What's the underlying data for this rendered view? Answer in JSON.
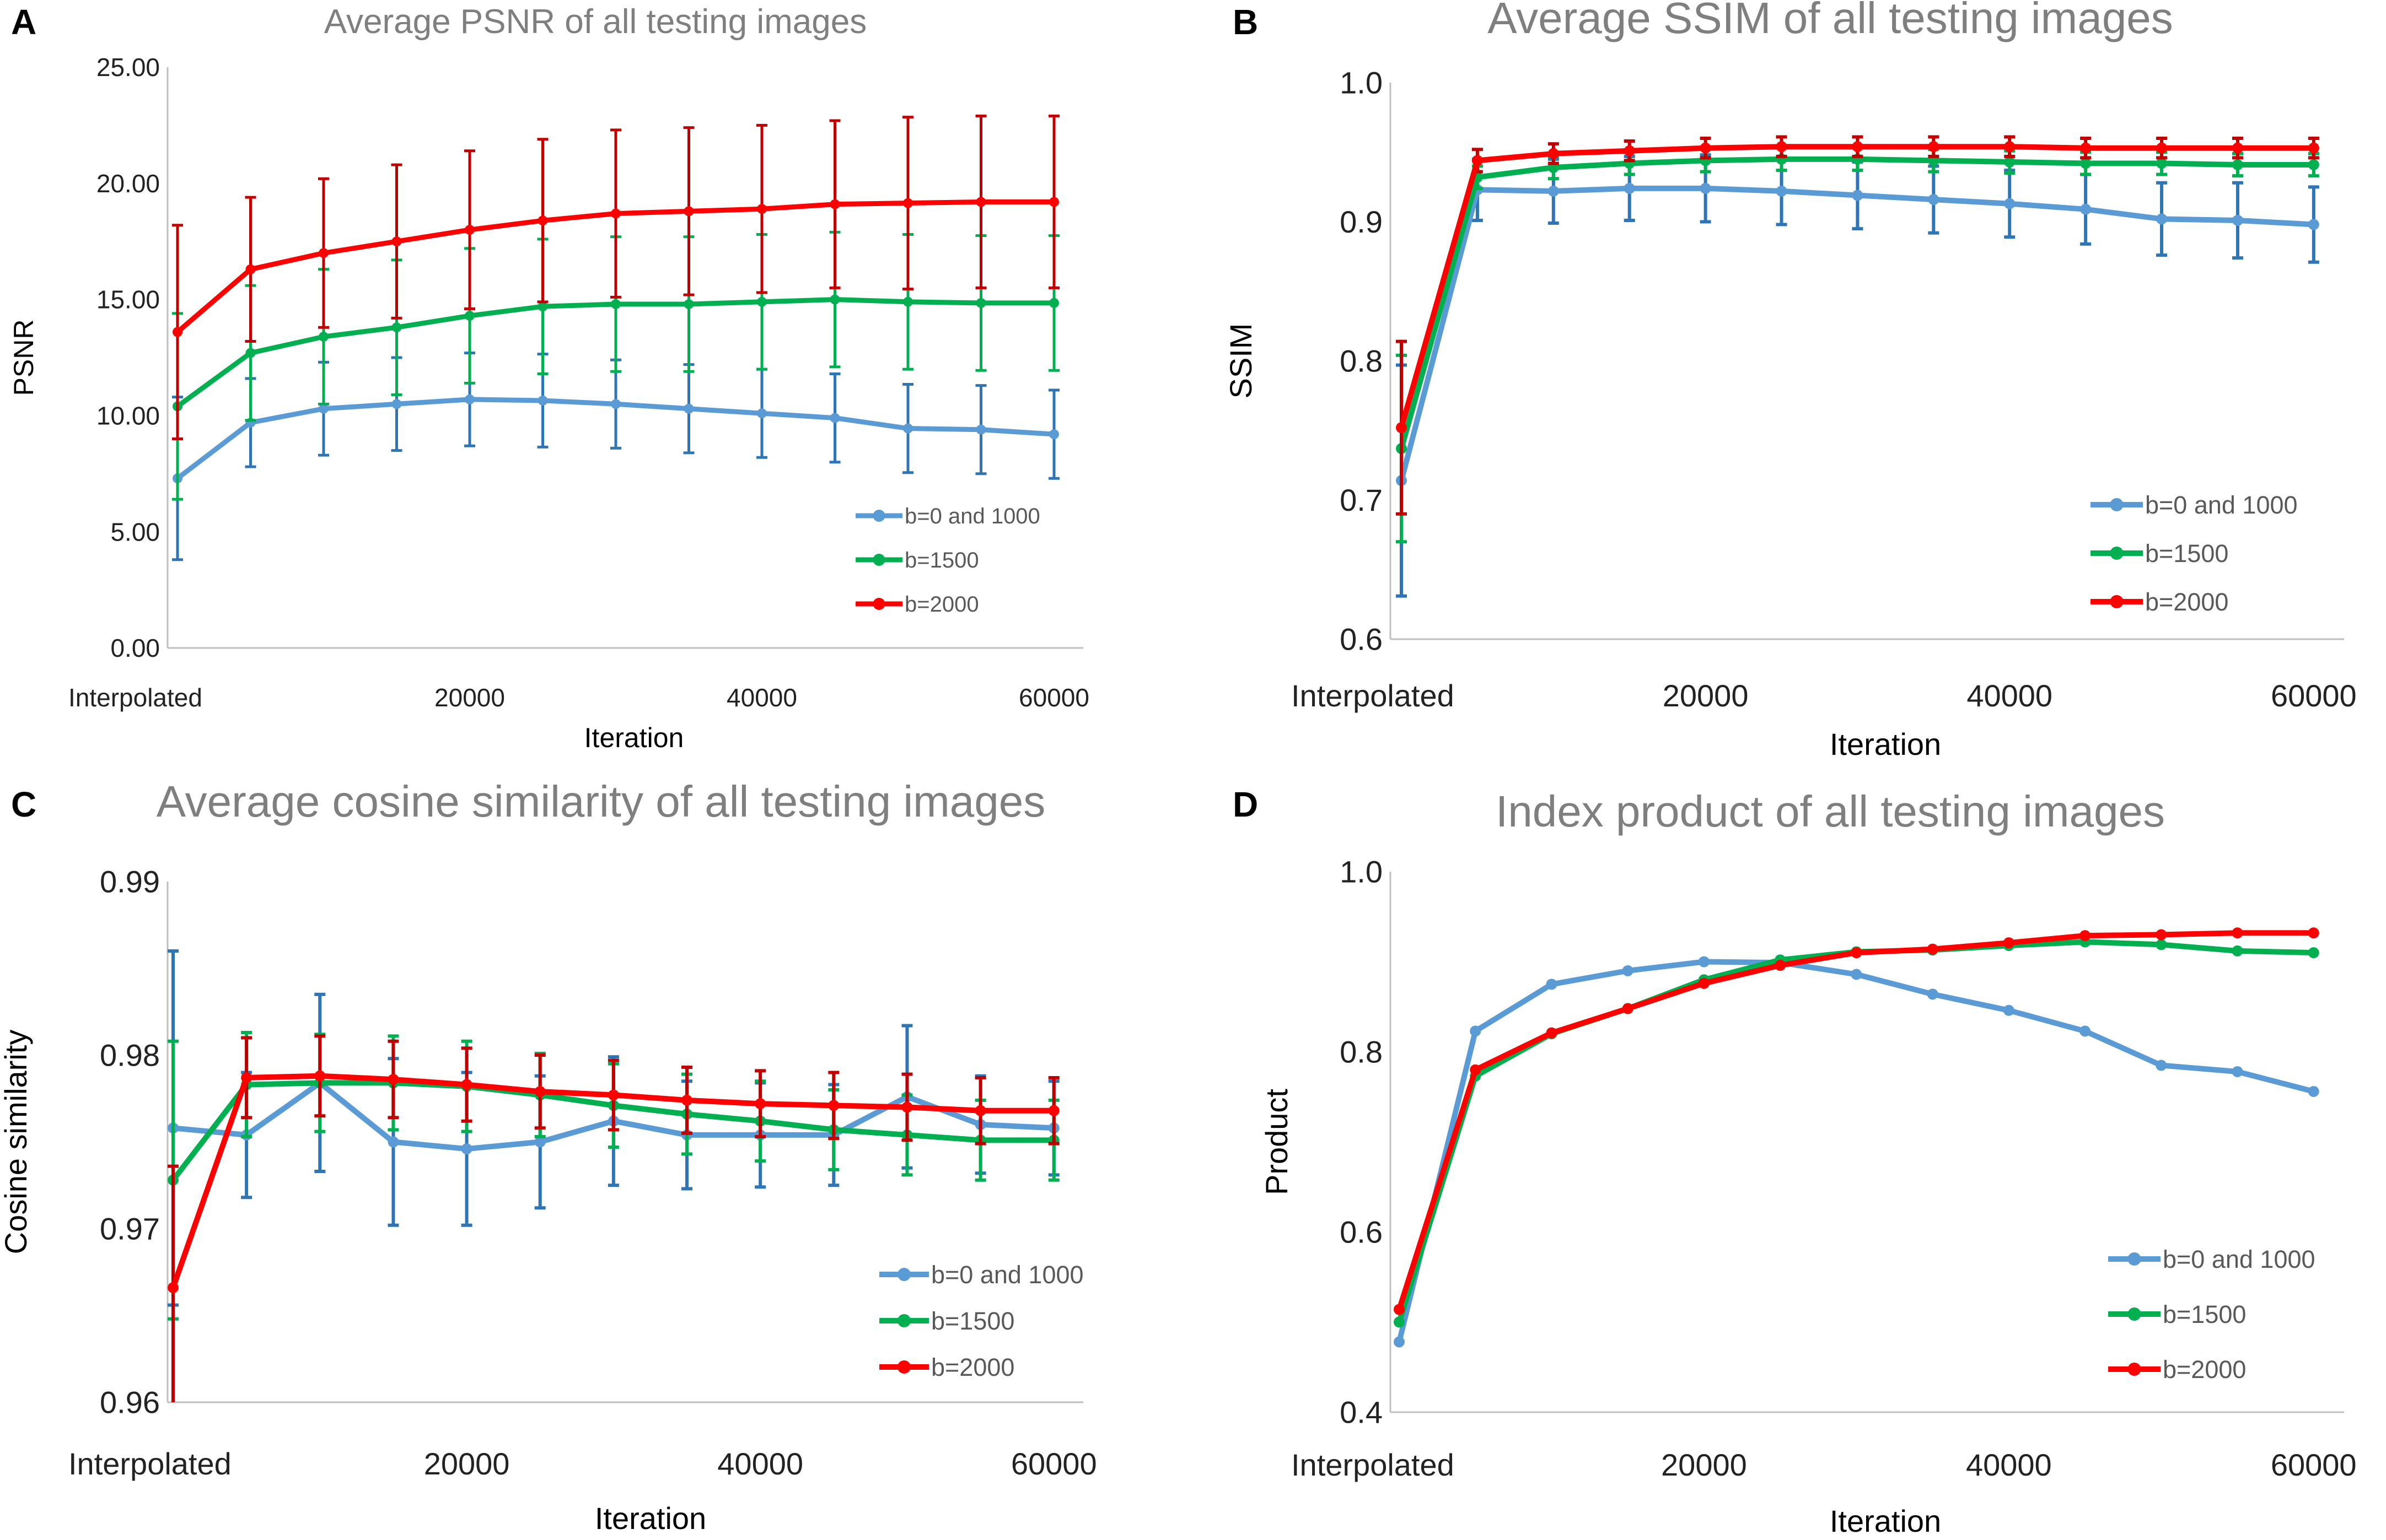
{
  "chart_data": [
    {
      "panel": "A",
      "type": "line",
      "title": "Average PSNR of all testing images",
      "xlabel": "Iteration",
      "ylabel": "PSNR",
      "x": [
        0,
        5000,
        10000,
        15000,
        20000,
        25000,
        30000,
        35000,
        40000,
        45000,
        50000,
        55000,
        60000
      ],
      "xtick_values": [
        0,
        20000,
        40000,
        60000
      ],
      "xtick_labels": [
        "Interpolated",
        "20000",
        "40000",
        "60000"
      ],
      "xlim": [
        0,
        62000
      ],
      "ylim": [
        0,
        25
      ],
      "yticks": [
        0,
        5,
        10,
        15,
        20,
        25
      ],
      "ytick_labels": [
        "0.00",
        "5.00",
        "10.00",
        "15.00",
        "20.00",
        "25.00"
      ],
      "error_bars": true,
      "series": [
        {
          "name": "b=0 and 1000",
          "color": "#5b9bd5",
          "errcolor": "#2e75b6",
          "values": [
            7.3,
            9.7,
            10.3,
            10.5,
            10.7,
            10.65,
            10.5,
            10.3,
            10.1,
            9.9,
            9.45,
            9.4,
            9.2
          ],
          "errors": [
            3.5,
            1.9,
            2.0,
            2.0,
            2.0,
            2.0,
            1.9,
            1.9,
            1.9,
            1.9,
            1.9,
            1.9,
            1.9
          ]
        },
        {
          "name": "b=1500",
          "color": "#00b050",
          "errcolor": "#00b050",
          "values": [
            10.4,
            12.7,
            13.4,
            13.8,
            14.3,
            14.7,
            14.8,
            14.8,
            14.9,
            15.0,
            14.9,
            14.85,
            14.85
          ],
          "errors": [
            4.0,
            2.9,
            2.9,
            2.9,
            2.9,
            2.9,
            2.9,
            2.9,
            2.9,
            2.9,
            2.9,
            2.9,
            2.9
          ]
        },
        {
          "name": "b=2000",
          "color": "#ff0000",
          "errcolor": "#c00000",
          "values": [
            13.6,
            16.3,
            17.0,
            17.5,
            18.0,
            18.4,
            18.7,
            18.8,
            18.9,
            19.1,
            19.15,
            19.2,
            19.2
          ],
          "errors": [
            4.6,
            3.1,
            3.2,
            3.3,
            3.4,
            3.5,
            3.6,
            3.6,
            3.6,
            3.6,
            3.7,
            3.7,
            3.7
          ]
        }
      ],
      "legend_position": "bottom-right"
    },
    {
      "panel": "B",
      "type": "line",
      "title": "Average SSIM of all testing images",
      "xlabel": "Iteration",
      "ylabel": "SSIM",
      "x": [
        0,
        5000,
        10000,
        15000,
        20000,
        25000,
        30000,
        35000,
        40000,
        45000,
        50000,
        55000,
        60000
      ],
      "xtick_values": [
        0,
        20000,
        40000,
        60000
      ],
      "xtick_labels": [
        "Interpolated",
        "20000",
        "40000",
        "60000"
      ],
      "xlim": [
        0,
        62000
      ],
      "ylim": [
        0.6,
        1.0
      ],
      "yticks": [
        0.6,
        0.7,
        0.8,
        0.9,
        1.0
      ],
      "ytick_labels": [
        "0.6",
        "0.7",
        "0.8",
        "0.9",
        "1.0"
      ],
      "error_bars": true,
      "series": [
        {
          "name": "b=0 and 1000",
          "color": "#5b9bd5",
          "errcolor": "#2e75b6",
          "values": [
            0.714,
            0.923,
            0.922,
            0.924,
            0.924,
            0.922,
            0.919,
            0.916,
            0.913,
            0.909,
            0.902,
            0.901,
            0.898
          ],
          "errors": [
            0.083,
            0.022,
            0.023,
            0.023,
            0.024,
            0.024,
            0.024,
            0.024,
            0.024,
            0.025,
            0.026,
            0.027,
            0.027
          ]
        },
        {
          "name": "b=1500",
          "color": "#00b050",
          "errcolor": "#00b050",
          "values": [
            0.737,
            0.932,
            0.939,
            0.942,
            0.944,
            0.945,
            0.945,
            0.944,
            0.943,
            0.942,
            0.942,
            0.941,
            0.941
          ],
          "errors": [
            0.067,
            0.008,
            0.008,
            0.008,
            0.008,
            0.008,
            0.008,
            0.008,
            0.008,
            0.008,
            0.008,
            0.008,
            0.008
          ]
        },
        {
          "name": "b=2000",
          "color": "#ff0000",
          "errcolor": "#c00000",
          "values": [
            0.752,
            0.944,
            0.949,
            0.951,
            0.953,
            0.954,
            0.954,
            0.954,
            0.954,
            0.953,
            0.953,
            0.953,
            0.953
          ],
          "errors": [
            0.062,
            0.008,
            0.007,
            0.007,
            0.007,
            0.007,
            0.007,
            0.007,
            0.007,
            0.007,
            0.007,
            0.007,
            0.007
          ]
        }
      ],
      "legend_position": "bottom-right"
    },
    {
      "panel": "C",
      "type": "line",
      "title": "Average cosine similarity of all testing images",
      "xlabel": "Iteration",
      "ylabel": "Cosine similarity",
      "x": [
        0,
        5000,
        10000,
        15000,
        20000,
        25000,
        30000,
        35000,
        40000,
        45000,
        50000,
        55000,
        60000
      ],
      "xtick_values": [
        0,
        20000,
        40000,
        60000
      ],
      "xtick_labels": [
        "Interpolated",
        "20000",
        "40000",
        "60000"
      ],
      "xlim": [
        0,
        62000
      ],
      "ylim": [
        0.96,
        0.99
      ],
      "yticks": [
        0.96,
        0.97,
        0.98,
        0.99
      ],
      "ytick_labels": [
        "0.96",
        "0.97",
        "0.98",
        "0.99"
      ],
      "error_bars": true,
      "series": [
        {
          "name": "b=0 and 1000",
          "color": "#5b9bd5",
          "errcolor": "#2e75b6",
          "values": [
            0.9758,
            0.9754,
            0.9784,
            0.975,
            0.9746,
            0.975,
            0.9762,
            0.9754,
            0.9754,
            0.9754,
            0.9776,
            0.976,
            0.9758
          ],
          "errors": [
            0.0102,
            0.0036,
            0.0051,
            0.0048,
            0.0044,
            0.0038,
            0.0037,
            0.0031,
            0.003,
            0.0029,
            0.0041,
            0.0028,
            0.0027
          ]
        },
        {
          "name": "b=1500",
          "color": "#00b050",
          "errcolor": "#00b050",
          "values": [
            0.9728,
            0.9783,
            0.9784,
            0.9784,
            0.9782,
            0.9777,
            0.9771,
            0.9766,
            0.9762,
            0.9757,
            0.9754,
            0.9751,
            0.9751
          ],
          "errors": [
            0.008,
            0.003,
            0.0028,
            0.0027,
            0.0026,
            0.0024,
            0.0024,
            0.0023,
            0.0023,
            0.0023,
            0.0023,
            0.0023,
            0.0023
          ]
        },
        {
          "name": "b=2000",
          "color": "#ff0000",
          "errcolor": "#c00000",
          "values": [
            0.9666,
            0.9787,
            0.9788,
            0.9786,
            0.9783,
            0.9779,
            0.9777,
            0.9774,
            0.9772,
            0.9771,
            0.977,
            0.9768,
            0.9768
          ],
          "errors": [
            0.007,
            0.0023,
            0.0023,
            0.0022,
            0.0021,
            0.0021,
            0.002,
            0.0019,
            0.0019,
            0.0019,
            0.0019,
            0.0019,
            0.0019
          ]
        }
      ],
      "legend_position": "bottom-right"
    },
    {
      "panel": "D",
      "type": "line",
      "title": "Index product of all testing images",
      "xlabel": "Iteration",
      "ylabel": "Product",
      "x": [
        0,
        5000,
        10000,
        15000,
        20000,
        25000,
        30000,
        35000,
        40000,
        45000,
        50000,
        55000,
        60000
      ],
      "xtick_values": [
        0,
        20000,
        40000,
        60000
      ],
      "xtick_labels": [
        "Interpolated",
        "20000",
        "40000",
        "60000"
      ],
      "xlim": [
        0,
        62000
      ],
      "ylim": [
        0.4,
        1.0
      ],
      "yticks": [
        0.4,
        0.6,
        0.8,
        1.0
      ],
      "ytick_labels": [
        "0.4",
        "0.6",
        "0.8",
        "1.0"
      ],
      "error_bars": false,
      "series": [
        {
          "name": "b=0 and 1000",
          "color": "#5b9bd5",
          "errcolor": "#5b9bd5",
          "values": [
            0.478,
            0.823,
            0.875,
            0.89,
            0.9,
            0.899,
            0.886,
            0.864,
            0.846,
            0.823,
            0.785,
            0.778,
            0.756
          ],
          "errors": []
        },
        {
          "name": "b=1500",
          "color": "#00b050",
          "errcolor": "#00b050",
          "values": [
            0.5,
            0.773,
            0.82,
            0.848,
            0.88,
            0.902,
            0.911,
            0.913,
            0.918,
            0.922,
            0.919,
            0.912,
            0.91
          ],
          "errors": []
        },
        {
          "name": "b=2000",
          "color": "#ff0000",
          "errcolor": "#ff0000",
          "values": [
            0.514,
            0.78,
            0.821,
            0.848,
            0.876,
            0.896,
            0.91,
            0.914,
            0.921,
            0.929,
            0.93,
            0.932,
            0.932
          ],
          "errors": []
        }
      ],
      "legend_position": "bottom-right"
    }
  ]
}
